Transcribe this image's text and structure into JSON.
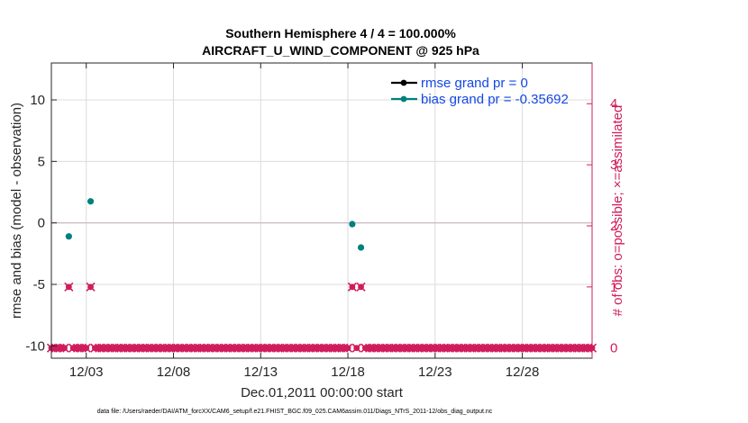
{
  "chart_data": {
    "type": "scatter",
    "title": [
      "Southern Hemisphere 4 / 4 = 100.000%",
      "AIRCRAFT_U_WIND_COMPONENT @ 925 hPa"
    ],
    "xlabel": "Dec.01,2011 00:00:00 start",
    "ylabel": "rmse and bias (model - observation)",
    "ylabel_right": "# of obs: o=possible; ×=assimilated",
    "xlim": [
      0,
      31
    ],
    "ylim": [
      -11,
      13
    ],
    "ylim_right": [
      -0.1667,
      4.6667
    ],
    "x_ticks": [
      {
        "x": 2,
        "label": "12/03"
      },
      {
        "x": 7,
        "label": "12/08"
      },
      {
        "x": 12,
        "label": "12/13"
      },
      {
        "x": 17,
        "label": "12/18"
      },
      {
        "x": 22,
        "label": "12/23"
      },
      {
        "x": 27,
        "label": "12/28"
      }
    ],
    "y_ticks": [
      10,
      5,
      0,
      -5,
      -10
    ],
    "y_ticks_right": [
      0,
      1,
      2,
      3,
      4
    ],
    "grid": true,
    "legend_position": "top-right",
    "reference_line": 0,
    "series": [
      {
        "name": "rmse grand pr = 0",
        "color": "#000000",
        "axis": "left",
        "x": [],
        "y": []
      },
      {
        "name": "bias grand pr = -0.35692",
        "color": "#00807f",
        "axis": "left",
        "x": [
          1.0,
          2.25,
          17.25,
          17.75
        ],
        "y": [
          -1.1,
          1.75,
          -0.1,
          -2.0
        ]
      },
      {
        "name": "obs possible",
        "color": "#d01c5b",
        "axis": "right",
        "marker": "o",
        "x": [
          1.0,
          2.25,
          17.25,
          17.75
        ],
        "y": [
          1,
          1,
          1,
          1
        ]
      },
      {
        "name": "obs assimilated",
        "color": "#d01c5b",
        "axis": "right",
        "marker": "x",
        "x": [
          1.0,
          2.25,
          17.25,
          17.75
        ],
        "y": [
          1,
          1,
          1,
          1
        ]
      }
    ],
    "zero_obs_series": {
      "color": "#d01c5b",
      "axis": "right",
      "value": 0,
      "x_start": 0,
      "x_end": 31,
      "step": 0.25
    }
  },
  "footnote": "data file: /Users/raeder/DAI/ATM_forcXX/CAM6_setup/f.e21.FHIST_BGC.f09_025.CAM6assim.011/Diags_NTrS_2011-12/obs_diag_output.nc"
}
